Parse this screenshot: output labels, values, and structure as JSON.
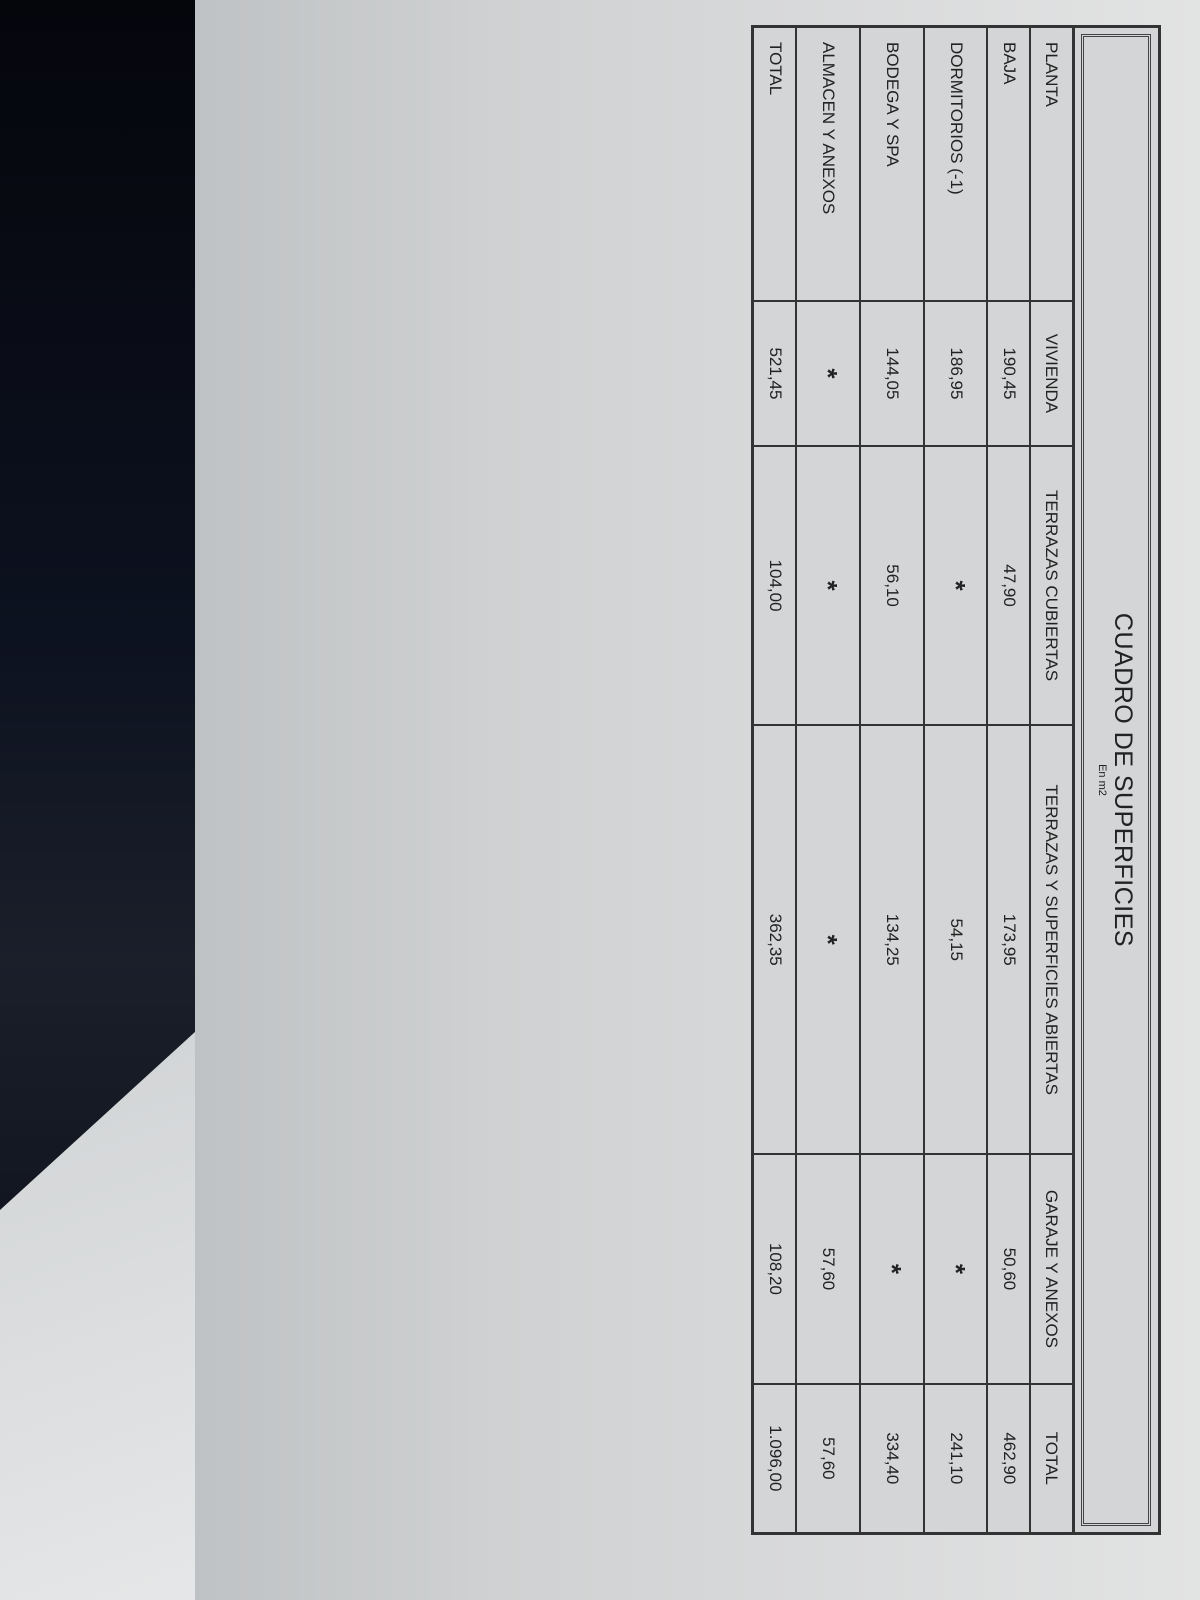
{
  "document": {
    "title": "CUADRO DE  SUPERFICIES",
    "unit": "En m2",
    "columns": [
      "PLANTA",
      "VIVIENDA",
      "TERRAZAS CUBIERTAS",
      "TERRAZAS Y SUPERFICIES ABIERTAS",
      "GARAJE Y ANEXOS",
      "TOTAL"
    ],
    "rows": [
      [
        "BAJA",
        "190,45",
        "47,90",
        "173,95",
        "50,60",
        "462,90"
      ],
      [
        "DORMITORIOS (-1)",
        "186,95",
        "*",
        "54,15",
        "*",
        "241,10"
      ],
      [
        "BODEGA Y SPA",
        "144,05",
        "56,10",
        "134,25",
        "*",
        "334,40"
      ],
      [
        "ALMACEN Y ANEXOS",
        "*",
        "*",
        "*",
        "57,60",
        "57,60"
      ],
      [
        "TOTAL",
        "521,45",
        "104,00",
        "362,35",
        "108,20",
        "1.096,00"
      ]
    ]
  }
}
